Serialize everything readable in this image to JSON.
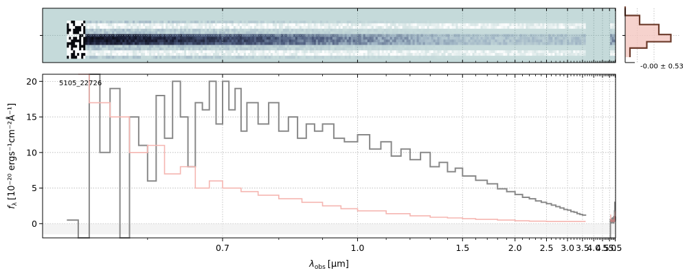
{
  "chart_data": [
    {
      "type": "heatmap",
      "panel": "2d-spectrum",
      "colormap": [
        "#ffffff",
        "#c8dcdc",
        "#9fb4c4",
        "#4b5a7c",
        "#1a1e34",
        "#000000"
      ],
      "background_color": "#c5dada",
      "coverage_um": [
        [
          0.52,
          3.62
        ],
        [
          5.05,
          5.52
        ]
      ],
      "trace_rows": [
        -0.5,
        0,
        0.5
      ],
      "grid": true
    },
    {
      "type": "line",
      "panel": "profile",
      "annotation": "-0.00 ± 0.53",
      "profile_x": [
        0,
        0,
        0.3,
        0.3,
        0.7,
        0.7,
        0.95,
        0.95,
        0.45,
        0.45,
        0.1,
        0.1
      ],
      "profile_y": [
        -1.6,
        -1.1,
        -1.1,
        -0.6,
        -0.6,
        -0.05,
        -0.05,
        0.35,
        0.35,
        0.7,
        0.7,
        1.2
      ],
      "line_color": "#6b3a2a",
      "fill_color": "#f4c7c0",
      "grid": true
    },
    {
      "type": "line",
      "panel": "1d-spectrum",
      "title": "5105_22726",
      "xlabel": "λ",
      "xlabel_sub": "obs",
      "xlabel_unit": "[μm]",
      "ylabel": "f",
      "ylabel_sub": "λ",
      "ylabel_unit": "[10⁻²⁰ ergs⁻¹cm⁻²Å⁻¹]",
      "ylim": [
        -2,
        21
      ],
      "xlim": [
        0.5,
        5.53
      ],
      "x_scale": "reciprocal",
      "x_ticks": [
        0.7,
        1.0,
        1.5,
        2.0,
        2.5,
        3.0,
        3.5,
        4.0,
        4.5,
        5.0,
        5.5
      ],
      "x_tick_labels": [
        "0.7",
        "1.0",
        "1.5",
        "2.0",
        "2.5",
        "3.0",
        "3.5",
        "4.0",
        "4.5",
        "5.0",
        "5.5"
      ],
      "x_minor_ticks": [
        0.6,
        0.8,
        0.9,
        1.1,
        1.2,
        1.3,
        1.4,
        1.6,
        1.7,
        1.8,
        1.9,
        2.1,
        2.2,
        2.3,
        2.4,
        2.6,
        2.7,
        2.8,
        2.9,
        3.1,
        3.2,
        3.3,
        3.4,
        3.6,
        3.7,
        3.8,
        3.9,
        4.1,
        4.2,
        4.3,
        4.4,
        4.6,
        4.7,
        4.8,
        4.9,
        5.1,
        5.2,
        5.3,
        5.4
      ],
      "y_ticks": [
        0,
        5,
        10,
        15,
        20
      ],
      "y_tick_labels": [
        "0",
        "5",
        "10",
        "15",
        "20"
      ],
      "grid": true,
      "series": [
        {
          "role": "flux",
          "color": "#888888",
          "segments": [
            {
              "x": [
                0.52,
                0.53,
                0.54,
                0.55,
                0.56,
                0.57,
                0.58,
                0.59,
                0.6,
                0.61,
                0.62,
                0.63,
                0.64,
                0.65,
                0.66,
                0.67,
                0.68,
                0.69,
                0.7,
                0.71,
                0.72,
                0.73,
                0.74,
                0.76,
                0.78,
                0.8,
                0.82,
                0.84,
                0.86,
                0.88,
                0.9,
                0.93,
                0.96,
                1.0,
                1.04,
                1.08,
                1.12,
                1.16,
                1.2,
                1.25,
                1.3,
                1.35,
                1.4,
                1.45,
                1.5,
                1.6,
                1.7,
                1.8,
                1.9,
                2.0,
                2.1,
                2.2,
                2.3,
                2.4,
                2.5,
                2.6,
                2.7,
                2.8,
                2.9,
                3.0,
                3.1,
                3.2,
                3.3,
                3.4,
                3.5,
                3.62
              ],
              "y": [
                0.5,
                -2,
                21,
                10,
                19,
                -2,
                15,
                11,
                6,
                18,
                12,
                20,
                15,
                8,
                17,
                16,
                20,
                14,
                20,
                16,
                19,
                13,
                17,
                14,
                17,
                13,
                15,
                12,
                14,
                13,
                14,
                12,
                11.5,
                12.5,
                10.5,
                11.5,
                9.5,
                10.5,
                9,
                10,
                8,
                8.6,
                7.3,
                7.8,
                6.7,
                6.1,
                5.6,
                4.9,
                4.5,
                4.1,
                3.7,
                3.5,
                3.2,
                3.0,
                2.8,
                2.6,
                2.4,
                2.2,
                2.0,
                1.9,
                1.7,
                1.6,
                1.4,
                1.3,
                1.2,
                1.1
              ]
            },
            {
              "x": [
                5.05,
                5.07,
                5.1,
                5.13,
                5.16,
                5.19,
                5.22,
                5.25,
                5.28,
                5.31,
                5.34,
                5.37,
                5.4,
                5.43,
                5.46,
                5.49,
                5.52
              ],
              "y": [
                -2,
                0.6,
                0.2,
                0.7,
                0.1,
                0.6,
                0.3,
                0.8,
                0.2,
                0.5,
                0.1,
                1.0,
                0.4,
                1.8,
                3.0,
                0.5,
                1.0
              ]
            }
          ]
        },
        {
          "role": "model",
          "color": "#f5b5b0",
          "segments": [
            {
              "x": [
                0.53,
                0.54,
                0.56,
                0.58,
                0.6,
                0.62,
                0.64,
                0.66,
                0.68,
                0.7,
                0.73,
                0.76,
                0.8,
                0.85,
                0.9,
                0.95,
                1.0,
                1.1,
                1.2,
                1.3,
                1.4,
                1.5,
                1.6,
                1.8,
                2.0,
                2.2,
                2.5,
                2.8,
                3.0,
                3.3,
                3.6
              ],
              "y": [
                21,
                17,
                15,
                10,
                11,
                7,
                8,
                5,
                6,
                5,
                4.5,
                4,
                3.5,
                3,
                2.5,
                2.1,
                1.8,
                1.4,
                1.1,
                0.9,
                0.8,
                0.7,
                0.6,
                0.5,
                0.4,
                0.35,
                0.3,
                0.3,
                0.3,
                0.3,
                0.4
              ]
            },
            {
              "x": [
                5.05,
                5.1,
                5.2,
                5.3,
                5.4,
                5.45,
                5.5,
                5.52
              ],
              "y": [
                1.2,
                0.5,
                0.4,
                0.4,
                0.5,
                0.8,
                1.5,
                1.8
              ]
            }
          ]
        },
        {
          "role": "fit",
          "color": "#c08080",
          "segments": [
            {
              "x": [
                5.06,
                5.1,
                5.15,
                5.2,
                5.25,
                5.3,
                5.35,
                5.4,
                5.45,
                5.5
              ],
              "y": [
                0.4,
                0.5,
                0.3,
                0.5,
                0.4,
                0.5,
                0.3,
                0.6,
                1.0,
                0.6
              ]
            }
          ]
        }
      ]
    }
  ]
}
